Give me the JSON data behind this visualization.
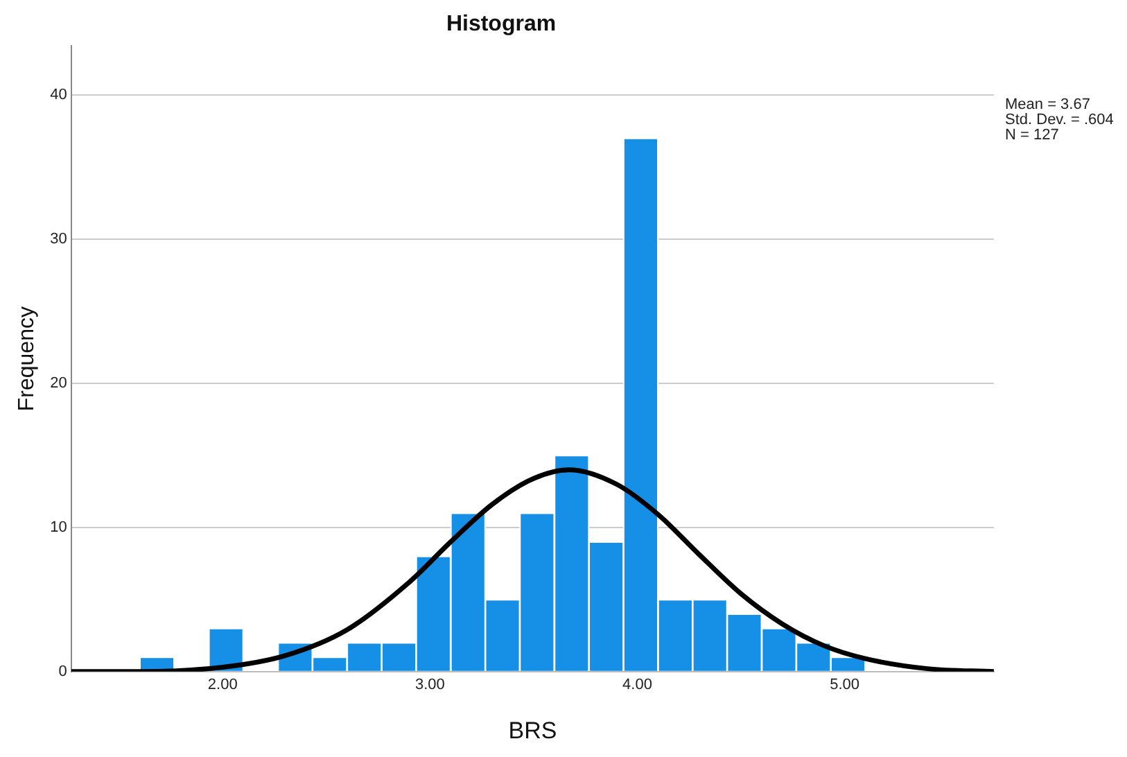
{
  "chart_data": {
    "type": "histogram",
    "title": "Histogram",
    "xlabel": "BRS",
    "ylabel": "Frequency",
    "bins": [
      1.6,
      1.767,
      1.933,
      2.1,
      2.267,
      2.433,
      2.6,
      2.767,
      2.933,
      3.1,
      3.267,
      3.433,
      3.6,
      3.767,
      3.933,
      4.1,
      4.267,
      4.433,
      4.6,
      4.767,
      4.933,
      5.1
    ],
    "series": [
      {
        "color": "#1590e6",
        "values": [
          1,
          0,
          3,
          0,
          2,
          1,
          2,
          2,
          8,
          11,
          5,
          11,
          15,
          9,
          37,
          5,
          5,
          4,
          3,
          2,
          1
        ]
      },
      {
        "type": "line",
        "color": "#000000",
        "x": [
          1.27,
          1.6,
          2.0,
          2.3,
          2.6,
          2.9,
          3.1,
          3.3,
          3.5,
          3.67,
          3.9,
          4.1,
          4.3,
          4.5,
          4.7,
          4.9,
          5.1,
          5.4,
          5.72
        ],
        "values": [
          0.0,
          0.0,
          0.3,
          1.1,
          2.9,
          6.2,
          9.0,
          11.6,
          13.4,
          14.0,
          13.0,
          10.9,
          8.1,
          5.4,
          3.3,
          1.8,
          0.9,
          0.2,
          0.0
        ]
      }
    ],
    "xlim": [
      1.27,
      5.72
    ],
    "xticks": [
      {
        "value": 2,
        "label": "2.00"
      },
      {
        "value": 3,
        "label": "3.00"
      },
      {
        "value": 4,
        "label": "4.00"
      },
      {
        "value": 5,
        "label": "5.00"
      }
    ],
    "ylim": [
      0,
      43.4
    ],
    "yticks": [
      0,
      10,
      20,
      30,
      40
    ],
    "grid": "y",
    "annotations": [
      "Mean = 3.67",
      "Std. Dev. = .604",
      "N = 127"
    ]
  }
}
